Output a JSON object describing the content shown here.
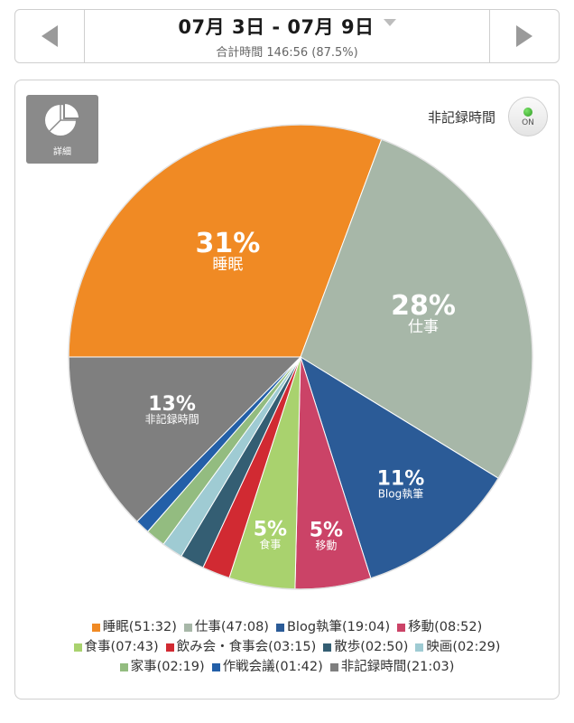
{
  "header": {
    "prev_icon": "triangle-left-icon",
    "next_icon": "triangle-right-icon",
    "date_range": "07月 3日 - 07月 9日",
    "total_label": "合計時間 146:56 (87.5%)"
  },
  "panel": {
    "detail_label": "詳細",
    "detail_icon": "pie-chart-icon",
    "unrecorded_label": "非記録時間",
    "toggle_label": "ON"
  },
  "chart_data": {
    "type": "pie",
    "start_angle_deg": 180,
    "direction": "clockwise",
    "slices": [
      {
        "name": "睡眠",
        "value": "51:32",
        "hours": 51.53,
        "percent_label": "31%",
        "color": "#F08A24",
        "label_color": "#ffffff"
      },
      {
        "name": "仕事",
        "value": "47:08",
        "hours": 47.13,
        "percent_label": "28%",
        "color": "#A7B7A8",
        "label_color": "#ffffff"
      },
      {
        "name": "Blog執筆",
        "value": "19:04",
        "hours": 19.07,
        "percent_label": "11%",
        "color": "#2B5B97",
        "label_color": "#ffffff"
      },
      {
        "name": "移動",
        "value": "08:52",
        "hours": 8.87,
        "percent_label": "5%",
        "color": "#CB4367",
        "label_color": "#ffffff"
      },
      {
        "name": "食事",
        "value": "07:43",
        "hours": 7.72,
        "percent_label": "5%",
        "color": "#A9D26E",
        "label_color": "#ffffff"
      },
      {
        "name": "飲み会・食事会",
        "value": "03:15",
        "hours": 3.25,
        "percent_label": "",
        "color": "#D12A32",
        "label_color": "#ffffff"
      },
      {
        "name": "散歩",
        "value": "02:50",
        "hours": 2.83,
        "percent_label": "",
        "color": "#345E73",
        "label_color": "#ffffff"
      },
      {
        "name": "映画",
        "value": "02:29",
        "hours": 2.48,
        "percent_label": "",
        "color": "#9FCBD3",
        "label_color": "#ffffff"
      },
      {
        "name": "家事",
        "value": "02:19",
        "hours": 2.32,
        "percent_label": "",
        "color": "#93BC80",
        "label_color": "#ffffff"
      },
      {
        "name": "作戦会議",
        "value": "01:42",
        "hours": 1.7,
        "percent_label": "",
        "color": "#235FA8",
        "label_color": "#ffffff"
      },
      {
        "name": "非記録時間",
        "value": "21:03",
        "hours": 21.05,
        "percent_label": "13%",
        "color": "#7F7F7F",
        "label_color": "#ffffff"
      }
    ]
  },
  "legend_rows": [
    [
      0,
      1,
      2,
      3
    ],
    [
      4,
      5,
      6,
      7
    ],
    [
      8,
      9,
      10
    ]
  ]
}
